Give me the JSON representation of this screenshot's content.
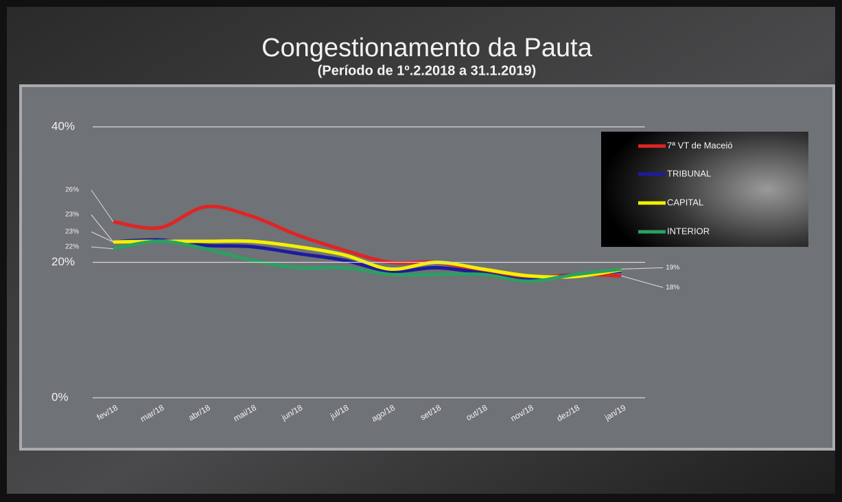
{
  "chart_data": {
    "type": "line",
    "title": "Congestionamento da Pauta",
    "subtitle": "(Período de 1º.2.2018  a  31.1.2019)",
    "categories": [
      "fev/18",
      "mar/18",
      "abr/18",
      "mai/18",
      "jun/18",
      "jul/18",
      "ago/18",
      "set/18",
      "out/18",
      "nov/18",
      "dez/18",
      "jan/19"
    ],
    "series": [
      {
        "name": "7ª VT de Maceió",
        "color": "#e02424",
        "values": [
          26,
          25.1,
          28.2,
          26.8,
          24,
          21.8,
          20,
          20,
          18.7,
          17.7,
          18.2,
          18
        ],
        "value_labels": [
          "26%",
          null,
          null,
          null,
          null,
          null,
          null,
          null,
          null,
          null,
          null,
          "18%"
        ]
      },
      {
        "name": "TRIBUNAL",
        "color": "#1c1c9c",
        "values": [
          23,
          23.3,
          22.5,
          22.3,
          21.3,
          20.3,
          18.7,
          19.2,
          18.4,
          17.4,
          18.2,
          18.7
        ],
        "value_labels": [
          "23%",
          null,
          null,
          null,
          null,
          null,
          null,
          null,
          null,
          null,
          null,
          null
        ]
      },
      {
        "name": "CAPITAL",
        "color": "#f4f000",
        "values": [
          23,
          23.1,
          23.1,
          23.1,
          22.3,
          21.1,
          19,
          20,
          19,
          18,
          17.9,
          18.9
        ],
        "value_labels": [
          "23%",
          null,
          null,
          null,
          null,
          null,
          null,
          null,
          null,
          null,
          null,
          null
        ]
      },
      {
        "name": "INTERIOR",
        "color": "#2aa063",
        "values": [
          22,
          23.1,
          22,
          20.3,
          19.2,
          19.2,
          18.2,
          18.2,
          18.2,
          17.2,
          18.2,
          19
        ],
        "value_labels": [
          "22%",
          null,
          null,
          null,
          null,
          null,
          null,
          null,
          null,
          null,
          null,
          "19%"
        ]
      }
    ],
    "ylim": [
      0,
      40
    ],
    "yticks": [
      {
        "value": 0,
        "label": "0%"
      },
      {
        "value": 20,
        "label": "20%"
      },
      {
        "value": 40,
        "label": "40%"
      }
    ],
    "grid": true,
    "legend": "upper right"
  }
}
